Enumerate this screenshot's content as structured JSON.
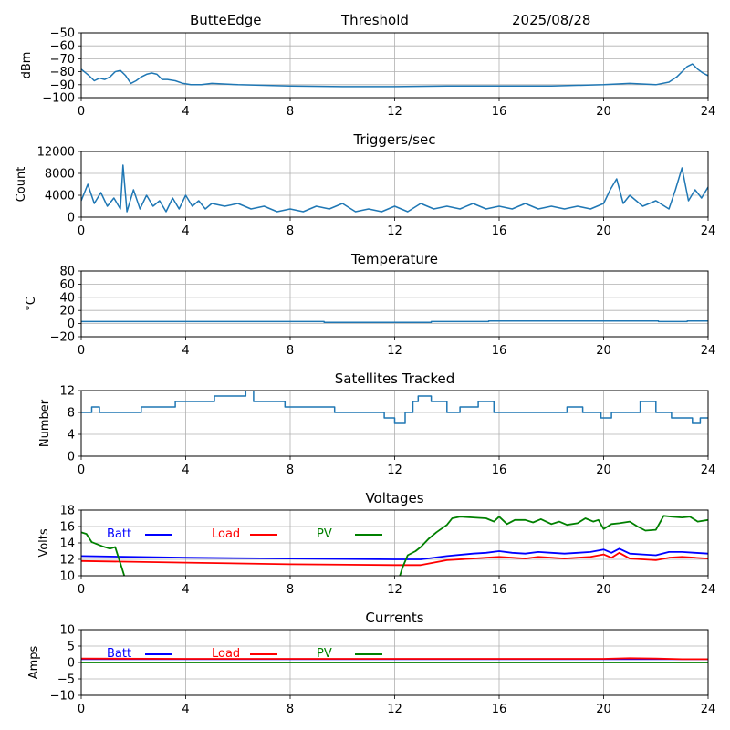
{
  "header": {
    "station": "ButteEdge",
    "plot": "Threshold",
    "date": "2025/08/28"
  },
  "chart_data": [
    {
      "type": "line",
      "title": "",
      "ylabel": "dBm",
      "xlim": [
        0,
        24
      ],
      "ylim": [
        -100,
        -50
      ],
      "xticks": [
        0,
        4,
        8,
        12,
        16,
        20,
        24
      ],
      "yticks": [
        -100,
        -90,
        -80,
        -70,
        -60,
        -50
      ],
      "grid": true,
      "series": [
        {
          "color": "#1f77b4",
          "x": [
            0,
            0.3,
            0.5,
            0.7,
            0.9,
            1.1,
            1.3,
            1.5,
            1.7,
            1.9,
            2.1,
            2.3,
            2.5,
            2.7,
            2.9,
            3.1,
            3.3,
            3.6,
            3.9,
            4.2,
            4.6,
            5,
            6,
            8,
            10,
            12,
            14,
            16,
            18,
            20,
            21,
            22,
            22.5,
            22.8,
            23.0,
            23.2,
            23.4,
            23.6,
            23.8,
            24
          ],
          "y": [
            -78,
            -83,
            -87,
            -85,
            -86,
            -84,
            -80,
            -79,
            -83,
            -89,
            -87,
            -84,
            -82,
            -81,
            -82,
            -86,
            -86,
            -87,
            -89,
            -90,
            -90,
            -89,
            -90,
            -91,
            -91.5,
            -91.5,
            -91,
            -91,
            -91,
            -90,
            -89,
            -90,
            -88,
            -84,
            -80,
            -76,
            -74,
            -78,
            -81,
            -83
          ]
        }
      ]
    },
    {
      "type": "line",
      "title": "Triggers/sec",
      "ylabel": "Count",
      "xlim": [
        0,
        24
      ],
      "ylim": [
        0,
        12000
      ],
      "xticks": [
        0,
        4,
        8,
        12,
        16,
        20,
        24
      ],
      "yticks": [
        0,
        4000,
        8000,
        12000
      ],
      "grid": true,
      "series": [
        {
          "color": "#1f77b4",
          "x": [
            0,
            0.25,
            0.5,
            0.75,
            1.0,
            1.25,
            1.5,
            1.6,
            1.75,
            2.0,
            2.25,
            2.5,
            2.75,
            3.0,
            3.25,
            3.5,
            3.75,
            4.0,
            4.25,
            4.5,
            4.75,
            5.0,
            5.5,
            6.0,
            6.5,
            7.0,
            7.5,
            8.0,
            8.5,
            9.0,
            9.5,
            10.0,
            10.5,
            11.0,
            11.5,
            12.0,
            12.5,
            13.0,
            13.5,
            14.0,
            14.5,
            15.0,
            15.5,
            16.0,
            16.5,
            17.0,
            17.5,
            18.0,
            18.5,
            19.0,
            19.5,
            20.0,
            20.25,
            20.5,
            20.75,
            21.0,
            21.5,
            22.0,
            22.5,
            22.75,
            23.0,
            23.25,
            23.5,
            23.75,
            24.0
          ],
          "y": [
            3000,
            6000,
            2500,
            4500,
            2000,
            3500,
            1500,
            9500,
            1000,
            5000,
            1500,
            4000,
            2000,
            3000,
            1000,
            3500,
            1500,
            4000,
            2000,
            3000,
            1500,
            2500,
            2000,
            2500,
            1500,
            2000,
            1000,
            1500,
            1000,
            2000,
            1500,
            2500,
            1000,
            1500,
            1000,
            2000,
            1000,
            2500,
            1500,
            2000,
            1500,
            2500,
            1500,
            2000,
            1500,
            2500,
            1500,
            2000,
            1500,
            2000,
            1500,
            2500,
            5000,
            7000,
            2500,
            4000,
            2000,
            3000,
            1500,
            5000,
            9000,
            3000,
            5000,
            3500,
            5500
          ]
        }
      ]
    },
    {
      "type": "line",
      "title": "Temperature",
      "ylabel": "°C",
      "xlim": [
        0,
        24
      ],
      "ylim": [
        -20,
        80
      ],
      "xticks": [
        0,
        4,
        8,
        12,
        16,
        20,
        24
      ],
      "yticks": [
        -20,
        0,
        20,
        40,
        60,
        80
      ],
      "grid": true,
      "series": [
        {
          "color": "#1f77b4",
          "x": [
            0,
            9.3,
            9.3,
            13.4,
            13.4,
            15.6,
            15.6,
            22.1,
            22.1,
            23.2,
            23.2,
            24
          ],
          "y": [
            3,
            3,
            2,
            2,
            3,
            3,
            4,
            4,
            3,
            3,
            4,
            4
          ]
        }
      ]
    },
    {
      "type": "line",
      "title": "Satellites Tracked",
      "ylabel": "Number",
      "xlim": [
        0,
        24
      ],
      "ylim": [
        0,
        12
      ],
      "xticks": [
        0,
        4,
        8,
        12,
        16,
        20,
        24
      ],
      "yticks": [
        0,
        4,
        8,
        12
      ],
      "grid": true,
      "series": [
        {
          "color": "#1f77b4",
          "x": [
            0,
            0.4,
            0.4,
            0.7,
            0.7,
            1.2,
            1.2,
            2.3,
            2.3,
            3.0,
            3.0,
            3.6,
            3.6,
            4.6,
            4.6,
            5.1,
            5.1,
            6.1,
            6.1,
            6.3,
            6.3,
            6.6,
            6.6,
            7.0,
            7.0,
            7.8,
            7.8,
            9.0,
            9.0,
            9.7,
            9.7,
            10.9,
            10.9,
            11.6,
            11.6,
            12.0,
            12.0,
            12.4,
            12.4,
            12.7,
            12.7,
            12.9,
            12.9,
            13.4,
            13.4,
            14.0,
            14.0,
            14.5,
            14.5,
            15.2,
            15.2,
            15.8,
            15.8,
            17.2,
            17.2,
            17.8,
            17.8,
            18.6,
            18.6,
            19.2,
            19.2,
            19.9,
            19.9,
            20.3,
            20.3,
            21.4,
            21.4,
            22.0,
            22.0,
            22.6,
            22.6,
            23.0,
            23.0,
            23.4,
            23.4,
            23.7,
            23.7,
            24.0
          ],
          "y": [
            8,
            8,
            9,
            9,
            8,
            8,
            8,
            8,
            9,
            9,
            9,
            9,
            10,
            10,
            10,
            10,
            11,
            11,
            11,
            11,
            12,
            12,
            10,
            10,
            10,
            10,
            9,
            9,
            9,
            9,
            8,
            8,
            8,
            8,
            7,
            7,
            6,
            6,
            8,
            8,
            10,
            10,
            11,
            11,
            10,
            10,
            8,
            8,
            9,
            9,
            10,
            10,
            8,
            8,
            8,
            8,
            8,
            8,
            9,
            9,
            8,
            8,
            7,
            7,
            8,
            8,
            10,
            10,
            8,
            8,
            7,
            7,
            7,
            7,
            6,
            6,
            7,
            7
          ]
        }
      ]
    },
    {
      "type": "line",
      "title": "Voltages",
      "ylabel": "Volts",
      "xlim": [
        0,
        24
      ],
      "ylim": [
        10,
        18
      ],
      "xticks": [
        0,
        4,
        8,
        12,
        16,
        20,
        24
      ],
      "yticks": [
        10,
        12,
        14,
        16,
        18
      ],
      "grid": true,
      "legend": "upper-left",
      "series": [
        {
          "name": "Batt",
          "color": "#0000ff",
          "x": [
            0,
            4,
            8,
            12,
            13,
            14,
            15,
            15.5,
            16,
            16.5,
            17,
            17.5,
            18,
            18.5,
            19,
            19.5,
            20,
            20.3,
            20.6,
            21,
            21.5,
            22,
            22.5,
            23,
            23.5,
            24
          ],
          "y": [
            12.4,
            12.2,
            12.1,
            12.0,
            12.0,
            12.4,
            12.7,
            12.8,
            13.0,
            12.8,
            12.7,
            12.9,
            12.8,
            12.7,
            12.8,
            12.9,
            13.2,
            12.8,
            13.3,
            12.7,
            12.6,
            12.5,
            12.9,
            12.9,
            12.8,
            12.7
          ]
        },
        {
          "name": "Load",
          "color": "#ff0000",
          "x": [
            0,
            4,
            8,
            12,
            13,
            14,
            15,
            15.5,
            16,
            16.5,
            17,
            17.5,
            18,
            18.5,
            19,
            19.5,
            20,
            20.3,
            20.6,
            21,
            21.5,
            22,
            22.5,
            23,
            23.5,
            24
          ],
          "y": [
            11.8,
            11.6,
            11.4,
            11.3,
            11.3,
            11.9,
            12.1,
            12.2,
            12.3,
            12.2,
            12.1,
            12.3,
            12.2,
            12.1,
            12.2,
            12.3,
            12.6,
            12.2,
            12.8,
            12.1,
            12.0,
            11.9,
            12.2,
            12.3,
            12.2,
            12.1
          ]
        },
        {
          "name": "PV",
          "color": "#008000",
          "x": [
            0,
            0.2,
            0.4,
            0.8,
            1.1,
            1.3,
            1.45,
            1.55,
            1.65,
            1.8,
            2.0
          ],
          "y": [
            15.3,
            15.1,
            14.1,
            13.6,
            13.3,
            13.5,
            12.0,
            11.0,
            10.0,
            null,
            null
          ],
          "x2": [
            12.2,
            12.3,
            12.5,
            12.8,
            13.0,
            13.3,
            13.6,
            14.0,
            14.2,
            14.5,
            15.0,
            15.5,
            15.8,
            16.0,
            16.3,
            16.6,
            17.0,
            17.3,
            17.6,
            18.0,
            18.3,
            18.6,
            19.0,
            19.3,
            19.6,
            19.8,
            20.0,
            20.3,
            20.6,
            21.0,
            21.3,
            21.6,
            22.0,
            22.3,
            22.6,
            23.0,
            23.3,
            23.6,
            24.0
          ],
          "y2": [
            10.0,
            11.0,
            12.5,
            13.0,
            13.5,
            14.5,
            15.3,
            16.2,
            17.0,
            17.2,
            17.1,
            17.0,
            16.6,
            17.2,
            16.3,
            16.8,
            16.8,
            16.5,
            16.9,
            16.3,
            16.6,
            16.2,
            16.4,
            17.0,
            16.6,
            16.8,
            15.7,
            16.3,
            16.4,
            16.6,
            16.0,
            15.5,
            15.6,
            17.3,
            17.2,
            17.1,
            17.2,
            16.6,
            16.8
          ]
        }
      ]
    },
    {
      "type": "line",
      "title": "Currents",
      "ylabel": "Amps",
      "xlim": [
        0,
        24
      ],
      "ylim": [
        -10,
        10
      ],
      "xticks": [
        0,
        4,
        8,
        12,
        16,
        20,
        24
      ],
      "yticks": [
        -10,
        -5,
        0,
        5,
        10
      ],
      "grid": true,
      "legend": "upper-left",
      "series": [
        {
          "name": "Batt",
          "color": "#0000ff",
          "x": [
            0,
            24
          ],
          "y": [
            1.0,
            1.0
          ]
        },
        {
          "name": "Load",
          "color": "#ff0000",
          "x": [
            0,
            4,
            8,
            12,
            16,
            20,
            21,
            22,
            23,
            24
          ],
          "y": [
            1.2,
            1.1,
            1.1,
            1.1,
            1.1,
            1.1,
            1.3,
            1.2,
            1.0,
            1.0
          ]
        },
        {
          "name": "PV",
          "color": "#008000",
          "x": [
            0,
            24
          ],
          "y": [
            0.0,
            0.0
          ]
        }
      ]
    }
  ]
}
